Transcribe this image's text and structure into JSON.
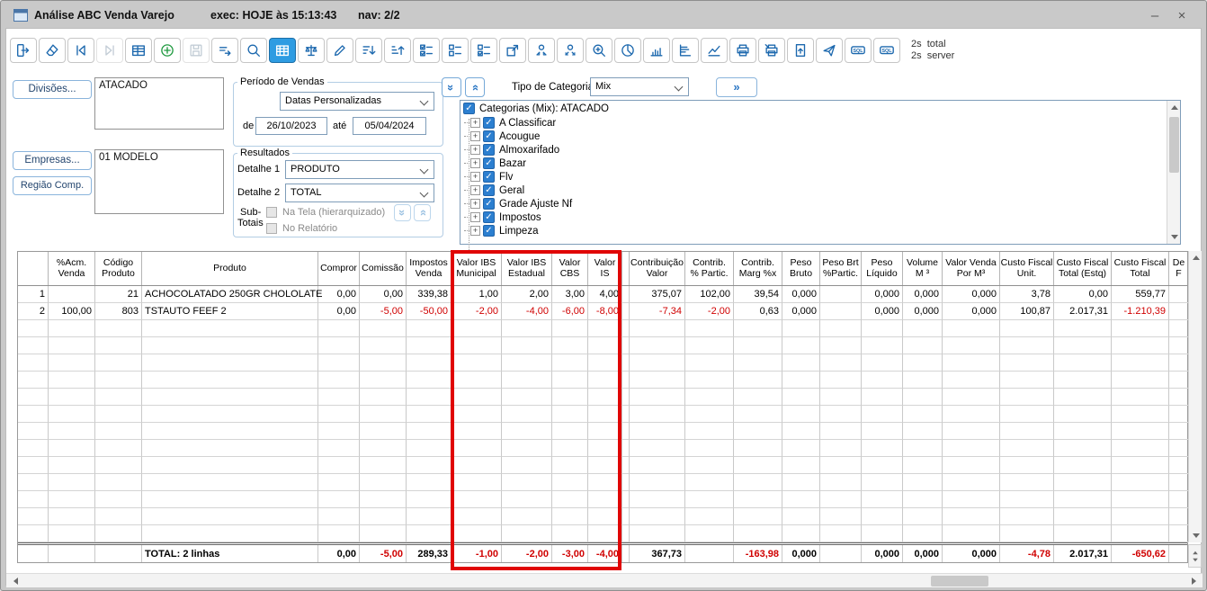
{
  "window": {
    "title": "Análise ABC Venda Varejo",
    "exec": "exec: HOJE às 15:13:43",
    "nav": "nav: 2/2",
    "minimize": "–",
    "close": "×"
  },
  "toolbar": {
    "icon_color": "#1c68ae",
    "buttons": [
      {
        "name": "exit",
        "state": "normal"
      },
      {
        "name": "clear",
        "state": "normal"
      },
      {
        "name": "nav-first",
        "state": "normal"
      },
      {
        "name": "nav-last",
        "state": "disabled"
      },
      {
        "name": "table",
        "state": "normal"
      },
      {
        "name": "add",
        "state": "normal",
        "tint": "#219a41"
      },
      {
        "name": "save",
        "state": "disabled"
      },
      {
        "name": "run-filter",
        "state": "normal"
      },
      {
        "name": "search",
        "state": "normal"
      },
      {
        "name": "grid-sum",
        "state": "active"
      },
      {
        "name": "compare",
        "state": "normal"
      },
      {
        "name": "edit",
        "state": "normal"
      },
      {
        "name": "sort-asc",
        "state": "normal"
      },
      {
        "name": "sort-desc",
        "state": "normal"
      },
      {
        "name": "select-all",
        "state": "normal"
      },
      {
        "name": "select-none",
        "state": "normal"
      },
      {
        "name": "select-invert",
        "state": "normal"
      },
      {
        "name": "export-window",
        "state": "normal"
      },
      {
        "name": "group-collapse",
        "state": "normal"
      },
      {
        "name": "group-expand",
        "state": "normal"
      },
      {
        "name": "zoom-in",
        "state": "normal"
      },
      {
        "name": "chart-pie",
        "state": "normal"
      },
      {
        "name": "chart-bar",
        "state": "normal"
      },
      {
        "name": "chart-hbar",
        "state": "normal"
      },
      {
        "name": "chart-line",
        "state": "normal"
      },
      {
        "name": "print",
        "state": "normal"
      },
      {
        "name": "print-options",
        "state": "normal"
      },
      {
        "name": "doc-export",
        "state": "normal"
      },
      {
        "name": "send",
        "state": "normal"
      },
      {
        "name": "sql",
        "state": "normal"
      },
      {
        "name": "sql",
        "state": "normal"
      }
    ],
    "timing": "2s  total\n2s  server"
  },
  "filters": {
    "divisoes_button": "Divisões...",
    "divisoes_value": "ATACADO",
    "empresas_button": "Empresas...",
    "regiao_button": "Região Comp.",
    "empresas_value": "01 MODELO"
  },
  "periodo": {
    "legend": "Período de Vendas",
    "preset": "Datas Personalizadas",
    "de_label": "de",
    "de_value": "26/10/2023",
    "ate_label": "até",
    "ate_value": "05/04/2024"
  },
  "resultados": {
    "legend": "Resultados",
    "detalhe1_label": "Detalhe 1",
    "detalhe1_value": "PRODUTO",
    "detalhe2_label": "Detalhe 2",
    "detalhe2_value": "TOTAL",
    "subtotais_line1": "Sub-",
    "subtotais_line2": "Totais",
    "option1": "Na Tela (hierarquizado)",
    "option2": "No Relatório"
  },
  "categoria": {
    "tipo_label": "Tipo de Categoria",
    "tipo_value": "Mix",
    "expand_button": "»",
    "root": "Categorias (Mix): ATACADO",
    "items": [
      "A Classificar",
      "Acougue",
      "Almoxarifado",
      "Bazar",
      "Flv",
      "Geral",
      "Grade Ajuste Nf",
      "Impostos",
      "Limpeza"
    ]
  },
  "grid": {
    "headers": [
      "",
      "%Acm.\nVenda",
      "Código\nProduto",
      "Produto",
      "Compror",
      "Comissão",
      "Impostos\nVenda",
      "Valor IBS\nMunicipal",
      "Valor IBS\nEstadual",
      "Valor\nCBS",
      "Valor\nIS",
      "",
      "Contribuição\nValor",
      "Contrib.\n% Partic.",
      "Contrib.\nMarg %x",
      "Peso\nBruto",
      "Peso Brt\n%Partic.",
      "Peso\nLíquido",
      "Volume\nM ³",
      "Valor Venda\nPor M³",
      "Custo Fiscal\nUnit.",
      "Custo Fiscal\nTotal (Estq)",
      "Custo Fiscal\nTotal",
      "De\nF"
    ],
    "rows": [
      [
        "1",
        "",
        "21",
        "ACHOCOLATADO 250GR CHOLOLATE",
        "0,00",
        "0,00",
        "339,38",
        "1,00",
        "2,00",
        "3,00",
        "4,00",
        "",
        "375,07",
        "102,00",
        "39,54",
        "0,000",
        "",
        "0,000",
        "0,000",
        "0,000",
        "3,78",
        "0,00",
        "559,77",
        ""
      ],
      [
        "2",
        "100,00",
        "803",
        "TSTAUTO FEEF 2",
        "0,00",
        "-5,00",
        "-50,00",
        "-2,00",
        "-4,00",
        "-6,00",
        "-8,00",
        "",
        "-7,34",
        "-2,00",
        "0,63",
        "0,000",
        "",
        "0,000",
        "0,000",
        "0,000",
        "100,87",
        "2.017,31",
        "-1.210,39",
        ""
      ]
    ],
    "empty_row_count": 13,
    "total": [
      "",
      "",
      "",
      "TOTAL: 2 linhas",
      "0,00",
      "-5,00",
      "289,33",
      "-1,00",
      "-2,00",
      "-3,00",
      "-4,00",
      "",
      "367,73",
      "",
      "-163,98",
      "0,000",
      "",
      "0,000",
      "0,000",
      "0,000",
      "-4,78",
      "2.017,31",
      "-650,62",
      ""
    ],
    "negative_color": "#d00000",
    "highlight_color": "#e00505"
  }
}
